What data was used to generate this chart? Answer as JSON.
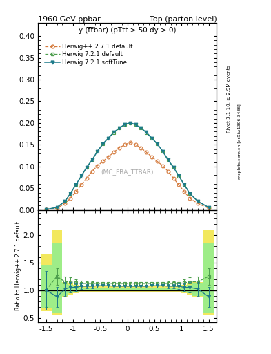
{
  "title_left": "1960 GeV ppbar",
  "title_right": "Top (parton level)",
  "plot_label": "y (t̅t̅bar) (pTtt > 50 dy > 0)",
  "watermark": "(MC_FBA_TTBAR)",
  "side_label1": "Rivet 3.1.10, ≥ 2.9M events",
  "side_label2": "mcplots.cern.ch [arXiv:1306.3436]",
  "ylabel_ratio": "Ratio to Herwig++ 2.7.1 default",
  "ylim_main": [
    0.0,
    0.43
  ],
  "ylim_ratio": [
    0.42,
    2.45
  ],
  "yticks_main": [
    0.0,
    0.05,
    0.1,
    0.15,
    0.2,
    0.25,
    0.3,
    0.35,
    0.4
  ],
  "yticks_ratio": [
    0.5,
    1.0,
    1.5,
    2.0
  ],
  "xlim": [
    -1.65,
    1.65
  ],
  "xticks": [
    -1.5,
    -1.0,
    -0.5,
    0.0,
    0.5,
    1.0,
    1.5
  ],
  "xticklabels": [
    "-1.5",
    "-1",
    "-0.5",
    "0",
    "0.5",
    "1",
    "1.5"
  ],
  "x_edges": [
    -1.6,
    -1.4,
    -1.2,
    -1.1,
    -1.0,
    -0.9,
    -0.8,
    -0.7,
    -0.6,
    -0.5,
    -0.4,
    -0.3,
    -0.2,
    -0.1,
    0.0,
    0.1,
    0.2,
    0.3,
    0.4,
    0.5,
    0.6,
    0.7,
    0.8,
    0.9,
    1.0,
    1.1,
    1.2,
    1.4,
    1.6
  ],
  "herwig_pp_vals": [
    0.001,
    0.004,
    0.015,
    0.027,
    0.042,
    0.058,
    0.073,
    0.089,
    0.102,
    0.112,
    0.122,
    0.133,
    0.143,
    0.15,
    0.155,
    0.15,
    0.143,
    0.133,
    0.122,
    0.112,
    0.102,
    0.089,
    0.073,
    0.058,
    0.042,
    0.027,
    0.015,
    0.004
  ],
  "herwig72_vals": [
    0.001,
    0.006,
    0.02,
    0.038,
    0.058,
    0.078,
    0.098,
    0.115,
    0.135,
    0.152,
    0.165,
    0.178,
    0.188,
    0.196,
    0.2,
    0.196,
    0.188,
    0.178,
    0.165,
    0.152,
    0.135,
    0.115,
    0.098,
    0.078,
    0.058,
    0.038,
    0.02,
    0.006
  ],
  "herwig72_soft_vals": [
    0.001,
    0.006,
    0.02,
    0.038,
    0.058,
    0.078,
    0.098,
    0.115,
    0.135,
    0.152,
    0.165,
    0.178,
    0.188,
    0.196,
    0.2,
    0.196,
    0.188,
    0.178,
    0.165,
    0.152,
    0.135,
    0.115,
    0.098,
    0.078,
    0.058,
    0.038,
    0.02,
    0.006
  ],
  "ratio_72_vals": [
    1.0,
    1.25,
    1.15,
    1.15,
    1.13,
    1.12,
    1.12,
    1.12,
    1.12,
    1.12,
    1.12,
    1.12,
    1.12,
    1.12,
    1.12,
    1.12,
    1.12,
    1.12,
    1.12,
    1.12,
    1.12,
    1.12,
    1.12,
    1.12,
    1.13,
    1.15,
    1.15,
    1.25
  ],
  "ratio_soft_vals": [
    1.0,
    0.88,
    1.02,
    1.05,
    1.05,
    1.07,
    1.07,
    1.07,
    1.08,
    1.08,
    1.08,
    1.07,
    1.07,
    1.07,
    1.07,
    1.07,
    1.07,
    1.07,
    1.08,
    1.08,
    1.08,
    1.07,
    1.07,
    1.07,
    1.05,
    1.05,
    1.02,
    0.88
  ],
  "ratio_72_err": [
    0.3,
    0.15,
    0.1,
    0.08,
    0.06,
    0.05,
    0.04,
    0.04,
    0.03,
    0.03,
    0.03,
    0.03,
    0.03,
    0.03,
    0.03,
    0.03,
    0.03,
    0.03,
    0.03,
    0.03,
    0.03,
    0.04,
    0.04,
    0.05,
    0.06,
    0.08,
    0.1,
    0.15
  ],
  "ratio_soft_err": [
    0.35,
    0.18,
    0.12,
    0.09,
    0.07,
    0.05,
    0.04,
    0.04,
    0.03,
    0.03,
    0.03,
    0.03,
    0.03,
    0.03,
    0.03,
    0.03,
    0.03,
    0.03,
    0.03,
    0.03,
    0.03,
    0.04,
    0.04,
    0.05,
    0.07,
    0.09,
    0.12,
    0.18
  ],
  "yellow_lo": [
    0.62,
    0.55,
    0.88,
    0.92,
    0.95,
    0.97,
    0.97,
    0.97,
    0.97,
    0.97,
    0.97,
    0.97,
    0.97,
    0.97,
    0.97,
    0.97,
    0.97,
    0.97,
    0.97,
    0.97,
    0.97,
    0.97,
    0.97,
    0.97,
    0.95,
    0.92,
    0.88,
    0.55
  ],
  "yellow_hi": [
    1.65,
    2.1,
    1.15,
    1.12,
    1.1,
    1.07,
    1.07,
    1.07,
    1.07,
    1.07,
    1.07,
    1.07,
    1.07,
    1.07,
    1.07,
    1.07,
    1.07,
    1.07,
    1.07,
    1.07,
    1.07,
    1.07,
    1.07,
    1.07,
    1.1,
    1.12,
    1.15,
    2.1
  ],
  "green_lo": [
    0.68,
    0.6,
    0.9,
    0.94,
    0.96,
    0.98,
    0.98,
    0.98,
    0.98,
    0.98,
    0.98,
    0.98,
    0.98,
    0.98,
    0.98,
    0.98,
    0.98,
    0.98,
    0.98,
    0.98,
    0.98,
    0.98,
    0.98,
    0.98,
    0.96,
    0.94,
    0.9,
    0.6
  ],
  "green_hi": [
    1.45,
    1.85,
    1.12,
    1.1,
    1.08,
    1.05,
    1.05,
    1.05,
    1.05,
    1.05,
    1.05,
    1.05,
    1.05,
    1.05,
    1.05,
    1.05,
    1.05,
    1.05,
    1.05,
    1.05,
    1.05,
    1.05,
    1.05,
    1.05,
    1.08,
    1.1,
    1.12,
    1.85
  ],
  "color_pp": "#d4793b",
  "color_72": "#4d9e4d",
  "color_72soft": "#1c7a8a",
  "color_band_yellow": "#f0e442",
  "color_band_green": "#90ee90",
  "legend_labels": [
    "Herwig++ 2.7.1 default",
    "Herwig 7.2.1 default",
    "Herwig 7.2.1 softTune"
  ]
}
